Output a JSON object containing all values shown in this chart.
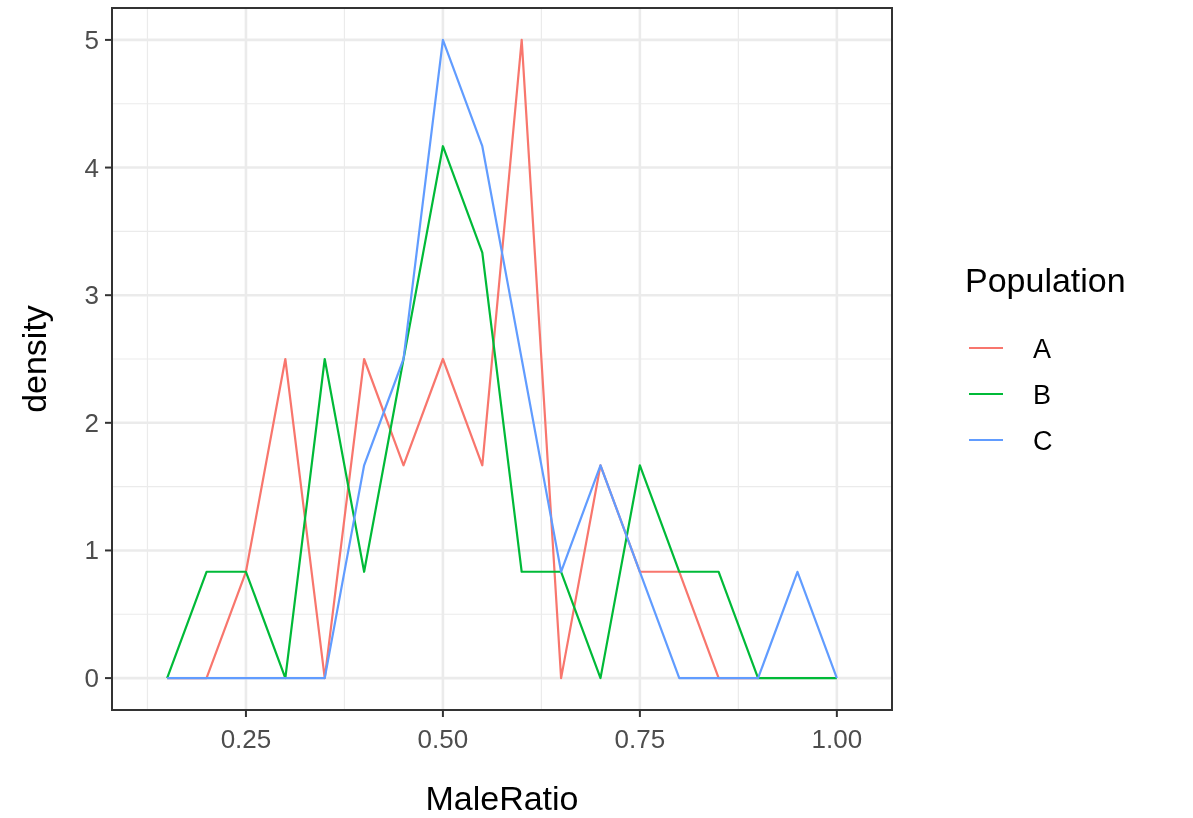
{
  "chart_data": {
    "type": "line",
    "xlabel": "MaleRatio",
    "ylabel": "density",
    "legend_title": "Population",
    "x": [
      0.15,
      0.2,
      0.25,
      0.3,
      0.35,
      0.4,
      0.45,
      0.5,
      0.55,
      0.6,
      0.65,
      0.7,
      0.75,
      0.8,
      0.85,
      0.9,
      0.95,
      1.0
    ],
    "series": [
      {
        "name": "A",
        "color": "#f8766d",
        "values": [
          0,
          0,
          0.833,
          2.5,
          0,
          2.5,
          1.667,
          2.5,
          1.667,
          5,
          0,
          1.667,
          0.833,
          0.833,
          0,
          0,
          null,
          null
        ]
      },
      {
        "name": "B",
        "color": "#00ba38",
        "values": [
          0,
          0.833,
          0.833,
          0,
          2.5,
          0.833,
          2.5,
          4.167,
          3.333,
          0.833,
          0.833,
          0,
          1.667,
          0.833,
          0.833,
          0,
          0,
          0
        ]
      },
      {
        "name": "C",
        "color": "#619cff",
        "values": [
          0,
          0,
          0,
          0,
          0,
          1.667,
          2.5,
          5,
          4.167,
          2.5,
          0.833,
          1.667,
          0.833,
          0,
          0,
          0,
          0.833,
          0
        ]
      }
    ],
    "xlim": [
      0.08,
      1.07
    ],
    "ylim": [
      -0.25,
      5.25
    ],
    "xticks": [
      {
        "value": 0.25,
        "label": "0.25"
      },
      {
        "value": 0.5,
        "label": "0.50"
      },
      {
        "value": 0.75,
        "label": "0.75"
      },
      {
        "value": 1,
        "label": "1.00"
      }
    ],
    "yticks": [
      0,
      1,
      2,
      3,
      4,
      5
    ],
    "grid": true,
    "legend": "right",
    "line_style": "solid",
    "marker": "none"
  }
}
